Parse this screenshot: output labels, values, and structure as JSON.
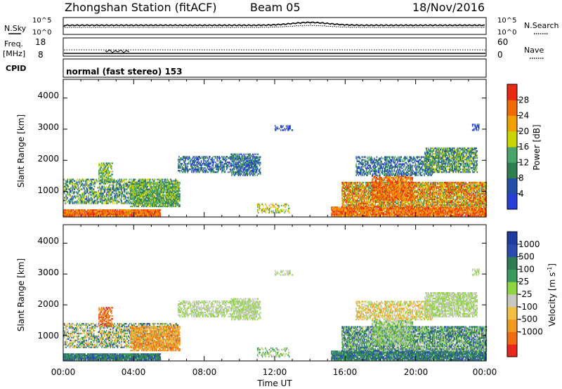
{
  "header": {
    "station": "Zhongshan Station (fitACF)",
    "beam": "Beam 05",
    "date": "18/Nov/2016"
  },
  "noise_panel": {
    "left_label": "N.Sky",
    "left_ticks": [
      "10^5",
      "10^0"
    ],
    "right_label": "N.Search",
    "right_ticks": [
      "10^5",
      "10^0"
    ]
  },
  "freq_panel": {
    "left_label_1": "Freq.",
    "left_label_2": "[MHz]",
    "left_ticks": [
      "18",
      "8"
    ],
    "right_label": "Nave",
    "right_ticks": [
      "60",
      "0"
    ]
  },
  "cpid": {
    "label": "CPID",
    "text": "normal (fast stereo) 153"
  },
  "colors": {
    "power": [
      "#2a3dd6",
      "#1f4fa8",
      "#2e7f4f",
      "#4aa56a",
      "#c9d400",
      "#f0a000",
      "#f06a00",
      "#e82a10"
    ],
    "velocity": [
      "#e8261a",
      "#f06a10",
      "#f29a20",
      "#f2c040",
      "#c8c8c0",
      "#8ed640",
      "#3a9a5c",
      "#2e7a52",
      "#2a4ab0",
      "#1e3aa0"
    ]
  },
  "chart_data": [
    {
      "type": "heatmap",
      "ylabel": "Slant Range [km]",
      "y_ticks": [
        "1000",
        "2000",
        "3000",
        "4000"
      ],
      "ylim": [
        180,
        4600
      ],
      "xlim": [
        0,
        24
      ],
      "colorbar": {
        "label": "Power [dB]",
        "ticks": [
          "4",
          "8",
          "12",
          "16",
          "20",
          "24",
          "28"
        ],
        "range": [
          0,
          32
        ]
      }
    },
    {
      "type": "heatmap",
      "ylabel": "Slant Range [km]",
      "y_ticks": [
        "1000",
        "2000",
        "3000",
        "4000"
      ],
      "ylim": [
        180,
        4600
      ],
      "xlim": [
        0,
        24
      ],
      "x_ticks": [
        "00:00",
        "04:00",
        "08:00",
        "12:00",
        "16:00",
        "20:00",
        "00:00"
      ],
      "xlabel": "Time UT",
      "colorbar": {
        "label": "Velocity [m s",
        "label_sup": "-1",
        "label_end": "]",
        "ticks": [
          "1000",
          "500",
          "100",
          "25",
          "-25",
          "-100",
          "-500",
          "-1000"
        ]
      }
    }
  ]
}
